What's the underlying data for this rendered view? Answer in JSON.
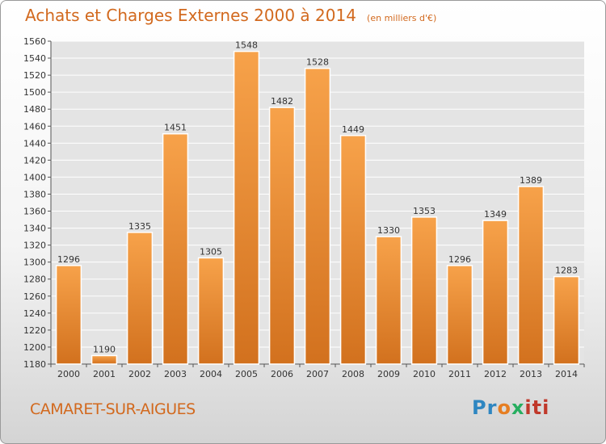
{
  "header": {
    "title": "Achats et Charges Externes 2000 à 2014",
    "unit": "(en milliers d'€)"
  },
  "footer": {
    "city": "CAMARET-SUR-AIGUES",
    "logo": [
      "Pr",
      "o",
      "x",
      "iti"
    ]
  },
  "colors": {
    "bar_top": "#f7a24a",
    "bar_bottom": "#d2711e",
    "text_accent": "#d2691e"
  },
  "chart_data": {
    "type": "bar",
    "title": "Achats et Charges Externes 2000 à 2014",
    "subtitle": "(en milliers d'€)",
    "categories": [
      "2000",
      "2001",
      "2002",
      "2003",
      "2004",
      "2005",
      "2006",
      "2007",
      "2008",
      "2009",
      "2010",
      "2011",
      "2012",
      "2013",
      "2014"
    ],
    "values": [
      1296,
      1190,
      1335,
      1451,
      1305,
      1548,
      1482,
      1528,
      1449,
      1330,
      1353,
      1296,
      1349,
      1389,
      1283
    ],
    "data_labels": [
      "1296",
      "1190",
      "1335",
      "1451",
      "1305",
      "1548",
      "1482",
      "1528",
      "1449",
      "1330",
      "1353",
      "1296",
      "1349",
      "1389",
      "1283"
    ],
    "ylim": [
      1180,
      1560
    ],
    "yticks": [
      1180,
      1200,
      1220,
      1240,
      1260,
      1280,
      1300,
      1320,
      1340,
      1360,
      1380,
      1400,
      1420,
      1440,
      1460,
      1480,
      1500,
      1520,
      1540,
      1560
    ],
    "grid": true,
    "legend": "none"
  }
}
